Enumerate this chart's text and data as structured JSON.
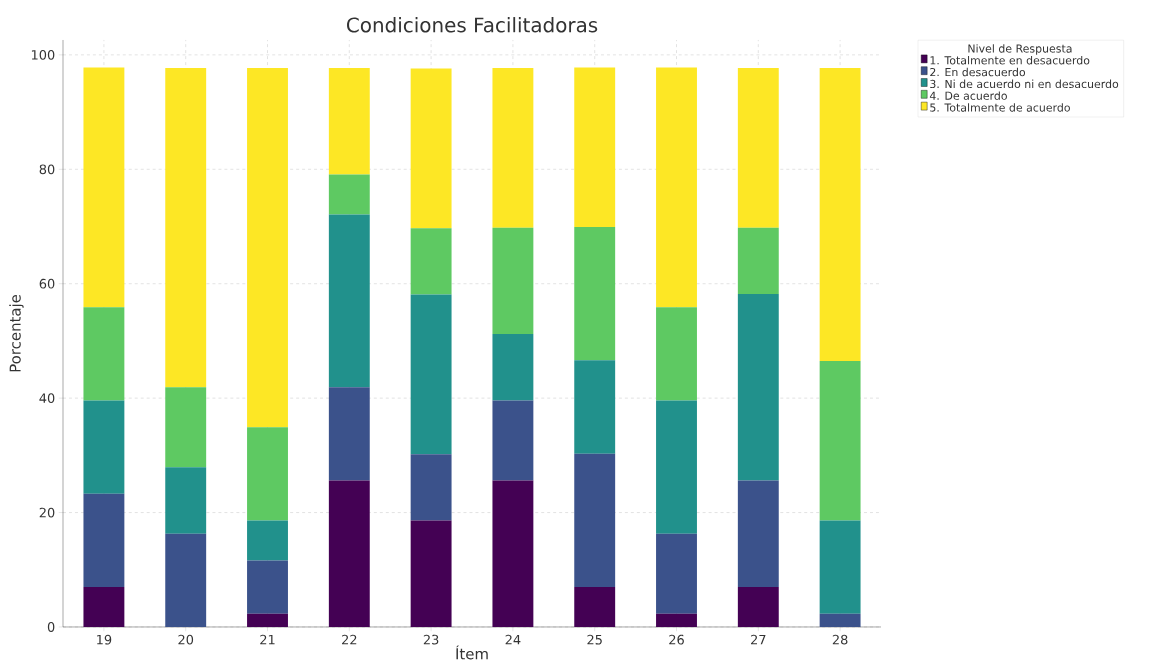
{
  "chart_data": {
    "type": "bar",
    "stacked": true,
    "title": "Condiciones Facilitadoras",
    "xlabel": "Ítem",
    "ylabel": "Porcentaje",
    "legend_title": "Nivel de Respuesta",
    "legend": "top right",
    "grid": true,
    "categories": [
      "19",
      "20",
      "21",
      "22",
      "23",
      "24",
      "25",
      "26",
      "27",
      "28"
    ],
    "ylim": [
      0,
      102.6
    ],
    "yticks": [
      0,
      20,
      40,
      60,
      80,
      100
    ],
    "series": [
      {
        "name": "1. Totalmente en desacuerdo",
        "color": "#440154",
        "values": [
          7.0,
          0,
          2.3,
          25.6,
          18.6,
          25.6,
          7.0,
          2.3,
          7.0,
          0
        ]
      },
      {
        "name": "2. En desacuerdo",
        "color": "#3b528b",
        "values": [
          16.3,
          16.3,
          9.3,
          16.3,
          11.6,
          14.0,
          23.3,
          14.0,
          18.6,
          2.3
        ]
      },
      {
        "name": "3. Ni de acuerdo ni en desacuerdo",
        "color": "#21918c",
        "values": [
          16.3,
          11.6,
          7.0,
          30.2,
          27.9,
          11.6,
          16.3,
          23.3,
          32.6,
          16.3
        ]
      },
      {
        "name": "4. De acuerdo",
        "color": "#5ec962",
        "values": [
          16.3,
          14.0,
          16.3,
          7.0,
          11.6,
          18.6,
          23.3,
          16.3,
          11.6,
          27.9
        ]
      },
      {
        "name": "5. Totalmente de acuerdo",
        "color": "#fde725",
        "values": [
          41.9,
          55.8,
          62.8,
          18.6,
          27.9,
          27.9,
          27.9,
          41.9,
          27.9,
          51.2
        ]
      }
    ]
  }
}
